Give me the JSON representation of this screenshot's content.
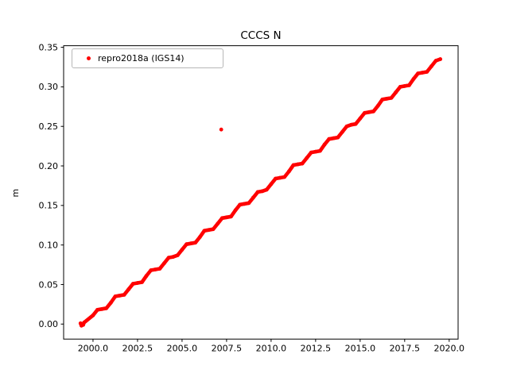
{
  "title": "CCCS N",
  "ylabel": "m",
  "legend": {
    "label": "repro2018a (IGS14)"
  },
  "colors": {
    "series": "#ff0000",
    "axes": "#000000",
    "background": "#ffffff",
    "legend_border": "#b7b7b7"
  },
  "chart_data": {
    "type": "scatter",
    "title": "CCCS N",
    "xlabel": "",
    "ylabel": "m",
    "xlim": [
      1998.35,
      2020.5
    ],
    "ylim": [
      -0.019,
      0.352
    ],
    "x_ticks": [
      2000.0,
      2002.5,
      2005.0,
      2007.5,
      2010.0,
      2012.5,
      2015.0,
      2017.5,
      2020.0
    ],
    "x_tick_labels": [
      "2000.0",
      "2002.5",
      "2005.0",
      "2007.5",
      "2010.0",
      "2012.5",
      "2015.0",
      "2017.5",
      "2020.0"
    ],
    "y_ticks": [
      0.0,
      0.05,
      0.1,
      0.15,
      0.2,
      0.25,
      0.3,
      0.35
    ],
    "y_tick_labels": [
      "0.00",
      "0.05",
      "0.10",
      "0.15",
      "0.20",
      "0.25",
      "0.30",
      "0.35"
    ],
    "grid": false,
    "legend_position": "upper left",
    "series": [
      {
        "name": "repro2018a (IGS14)",
        "color": "#ff0000",
        "marker": ".",
        "points": [
          [
            1999.3,
            0.001
          ],
          [
            1999.35,
            -0.002
          ],
          [
            1999.4,
            0.0
          ],
          [
            1999.45,
            -0.001
          ],
          [
            1999.5,
            0.002
          ],
          [
            2000.0,
            0.011
          ],
          [
            2000.25,
            0.018
          ],
          [
            2000.5,
            0.019
          ],
          [
            2000.75,
            0.02
          ],
          [
            2001.0,
            0.027
          ],
          [
            2001.25,
            0.035
          ],
          [
            2001.5,
            0.036
          ],
          [
            2001.75,
            0.037
          ],
          [
            2002.0,
            0.044
          ],
          [
            2002.25,
            0.051
          ],
          [
            2002.5,
            0.052
          ],
          [
            2002.75,
            0.053
          ],
          [
            2003.0,
            0.061
          ],
          [
            2003.25,
            0.068
          ],
          [
            2003.5,
            0.069
          ],
          [
            2003.75,
            0.07
          ],
          [
            2004.0,
            0.077
          ],
          [
            2004.25,
            0.084
          ],
          [
            2004.5,
            0.085
          ],
          [
            2004.75,
            0.087
          ],
          [
            2005.0,
            0.094
          ],
          [
            2005.25,
            0.101
          ],
          [
            2005.5,
            0.102
          ],
          [
            2005.75,
            0.103
          ],
          [
            2006.0,
            0.11
          ],
          [
            2006.25,
            0.118
          ],
          [
            2006.5,
            0.119
          ],
          [
            2006.75,
            0.12
          ],
          [
            2007.0,
            0.127
          ],
          [
            2007.25,
            0.134
          ],
          [
            2007.5,
            0.135
          ],
          [
            2007.75,
            0.136
          ],
          [
            2008.0,
            0.144
          ],
          [
            2008.25,
            0.151
          ],
          [
            2008.5,
            0.152
          ],
          [
            2008.75,
            0.153
          ],
          [
            2009.0,
            0.16
          ],
          [
            2009.25,
            0.167
          ],
          [
            2009.5,
            0.168
          ],
          [
            2009.75,
            0.17
          ],
          [
            2010.0,
            0.177
          ],
          [
            2010.25,
            0.184
          ],
          [
            2010.5,
            0.185
          ],
          [
            2010.75,
            0.186
          ],
          [
            2011.0,
            0.193
          ],
          [
            2011.25,
            0.201
          ],
          [
            2011.5,
            0.202
          ],
          [
            2011.75,
            0.203
          ],
          [
            2012.0,
            0.21
          ],
          [
            2012.25,
            0.217
          ],
          [
            2012.5,
            0.218
          ],
          [
            2012.75,
            0.219
          ],
          [
            2013.0,
            0.227
          ],
          [
            2013.25,
            0.234
          ],
          [
            2013.5,
            0.235
          ],
          [
            2013.75,
            0.236
          ],
          [
            2014.0,
            0.243
          ],
          [
            2014.25,
            0.25
          ],
          [
            2014.5,
            0.252
          ],
          [
            2014.75,
            0.253
          ],
          [
            2015.0,
            0.26
          ],
          [
            2015.25,
            0.267
          ],
          [
            2015.5,
            0.268
          ],
          [
            2015.75,
            0.269
          ],
          [
            2016.0,
            0.276
          ],
          [
            2016.25,
            0.284
          ],
          [
            2016.5,
            0.285
          ],
          [
            2016.75,
            0.286
          ],
          [
            2017.0,
            0.293
          ],
          [
            2017.25,
            0.3
          ],
          [
            2017.5,
            0.301
          ],
          [
            2017.75,
            0.302
          ],
          [
            2018.0,
            0.31
          ],
          [
            2018.25,
            0.317
          ],
          [
            2018.5,
            0.318
          ],
          [
            2018.75,
            0.319
          ],
          [
            2019.0,
            0.326
          ],
          [
            2019.25,
            0.333
          ],
          [
            2019.5,
            0.335
          ]
        ],
        "isolated_points": [
          [
            2007.2,
            0.246
          ]
        ]
      }
    ]
  }
}
